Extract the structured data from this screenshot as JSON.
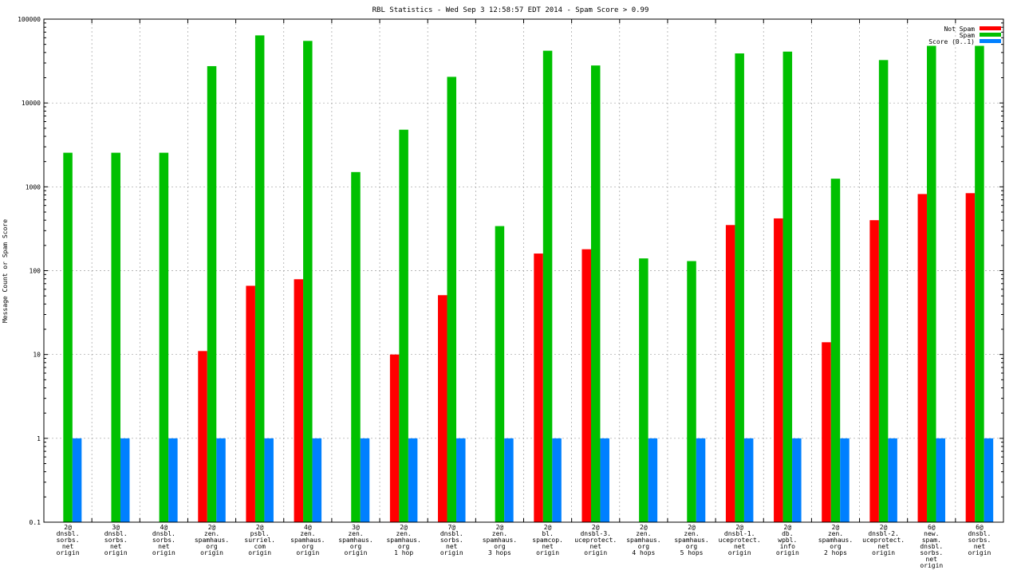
{
  "chart_data": {
    "type": "bar",
    "title": "RBL Statistics - Wed Sep  3 12:58:57 EDT 2014 - Spam Score > 0.99",
    "xlabel": "",
    "ylabel": "Message Count or Spam Score",
    "yscale": "log",
    "ylim": [
      0.1,
      100000
    ],
    "yticks": [
      "100000",
      "10000",
      "1000",
      "100",
      "10",
      "1",
      "0.1"
    ],
    "grid": true,
    "legend_position": "top-right",
    "categories": [
      [
        "2@",
        "dnsbl.",
        "sorbs.",
        "net",
        "origin"
      ],
      [
        "3@",
        "dnsbl.",
        "sorbs.",
        "net",
        "origin"
      ],
      [
        "4@",
        "dnsbl.",
        "sorbs.",
        "net",
        "origin"
      ],
      [
        "2@",
        "zen.",
        "spamhaus.",
        "org",
        "origin"
      ],
      [
        "2@",
        "psbl.",
        "surriel.",
        "com",
        "origin"
      ],
      [
        "4@",
        "zen.",
        "spamhaus.",
        "org",
        "origin"
      ],
      [
        "3@",
        "zen.",
        "spamhaus.",
        "org",
        "origin"
      ],
      [
        "2@",
        "zen.",
        "spamhaus.",
        "org",
        "1 hop"
      ],
      [
        "7@",
        "dnsbl.",
        "sorbs.",
        "net",
        "origin"
      ],
      [
        "2@",
        "zen.",
        "spamhaus.",
        "org",
        "3 hops"
      ],
      [
        "2@",
        "bl.",
        "spamcop.",
        "net",
        "origin"
      ],
      [
        "2@",
        "dnsbl-3.",
        "uceprotect.",
        "net",
        "origin"
      ],
      [
        "2@",
        "zen.",
        "spamhaus.",
        "org",
        "4 hops"
      ],
      [
        "2@",
        "zen.",
        "spamhaus.",
        "org",
        "5 hops"
      ],
      [
        "2@",
        "dnsbl-1.",
        "uceprotect.",
        "net",
        "origin"
      ],
      [
        "2@",
        "db.",
        "wpbl.",
        "info",
        "origin"
      ],
      [
        "2@",
        "zen.",
        "spamhaus.",
        "org",
        "2 hops"
      ],
      [
        "2@",
        "dnsbl-2.",
        "uceprotect.",
        "net",
        "origin"
      ],
      [
        "6@",
        "new.",
        "spam.",
        "dnsbl.",
        "sorbs.",
        "net",
        "origin"
      ],
      [
        "6@",
        "dnsbl.",
        "sorbs.",
        "net",
        "origin"
      ]
    ],
    "series": [
      {
        "name": "Not Spam",
        "color": "#ff0000",
        "values": [
          null,
          null,
          null,
          11,
          66,
          79,
          null,
          10,
          51,
          null,
          160,
          180,
          null,
          null,
          350,
          420,
          14,
          400,
          820,
          840
        ]
      },
      {
        "name": "Spam",
        "color": "#00c000",
        "values": [
          2550,
          2550,
          2550,
          27500,
          64000,
          55000,
          1500,
          4800,
          20500,
          340,
          42000,
          28000,
          140,
          130,
          39000,
          41000,
          1250,
          32500,
          48000,
          48000
        ]
      },
      {
        "name": "Score (0..1)",
        "color": "#0080ff",
        "values": [
          1,
          1,
          1,
          1,
          1,
          1,
          1,
          1,
          1,
          1,
          1,
          1,
          1,
          1,
          1,
          1,
          1,
          1,
          1,
          1
        ]
      }
    ]
  }
}
